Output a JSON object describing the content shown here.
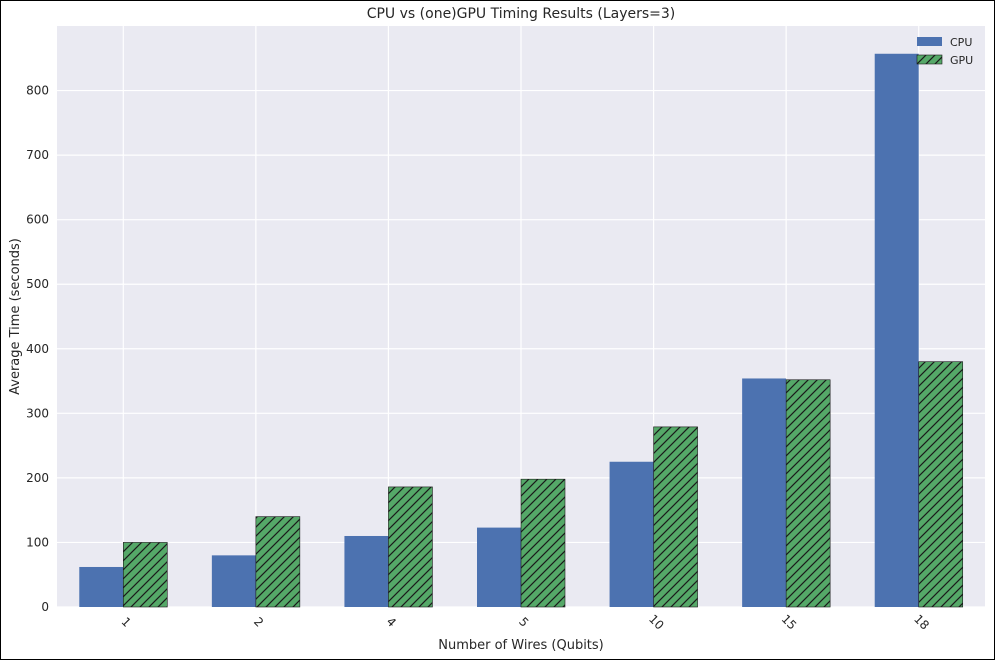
{
  "chart_data": {
    "type": "bar",
    "title": "CPU vs (one)GPU Timing Results (Layers=3)",
    "xlabel": "Number of Wires (Qubits)",
    "ylabel": "Average Time (seconds)",
    "categories": [
      "1",
      "2",
      "4",
      "5",
      "10",
      "15",
      "18"
    ],
    "series": [
      {
        "name": "CPU",
        "values": [
          62,
          80,
          110,
          123,
          225,
          354,
          857
        ],
        "color": "#4c72b0",
        "hatch": false
      },
      {
        "name": "GPU",
        "values": [
          100,
          140,
          186,
          198,
          279,
          352,
          380
        ],
        "color": "#55a868",
        "hatch": true
      }
    ],
    "ylim": [
      0,
      900
    ],
    "yticks": [
      0,
      100,
      200,
      300,
      400,
      500,
      600,
      700,
      800
    ],
    "grid": true,
    "legend_position": "top-right",
    "background_color": "#eaeaf2",
    "grid_color": "#ffffff"
  }
}
